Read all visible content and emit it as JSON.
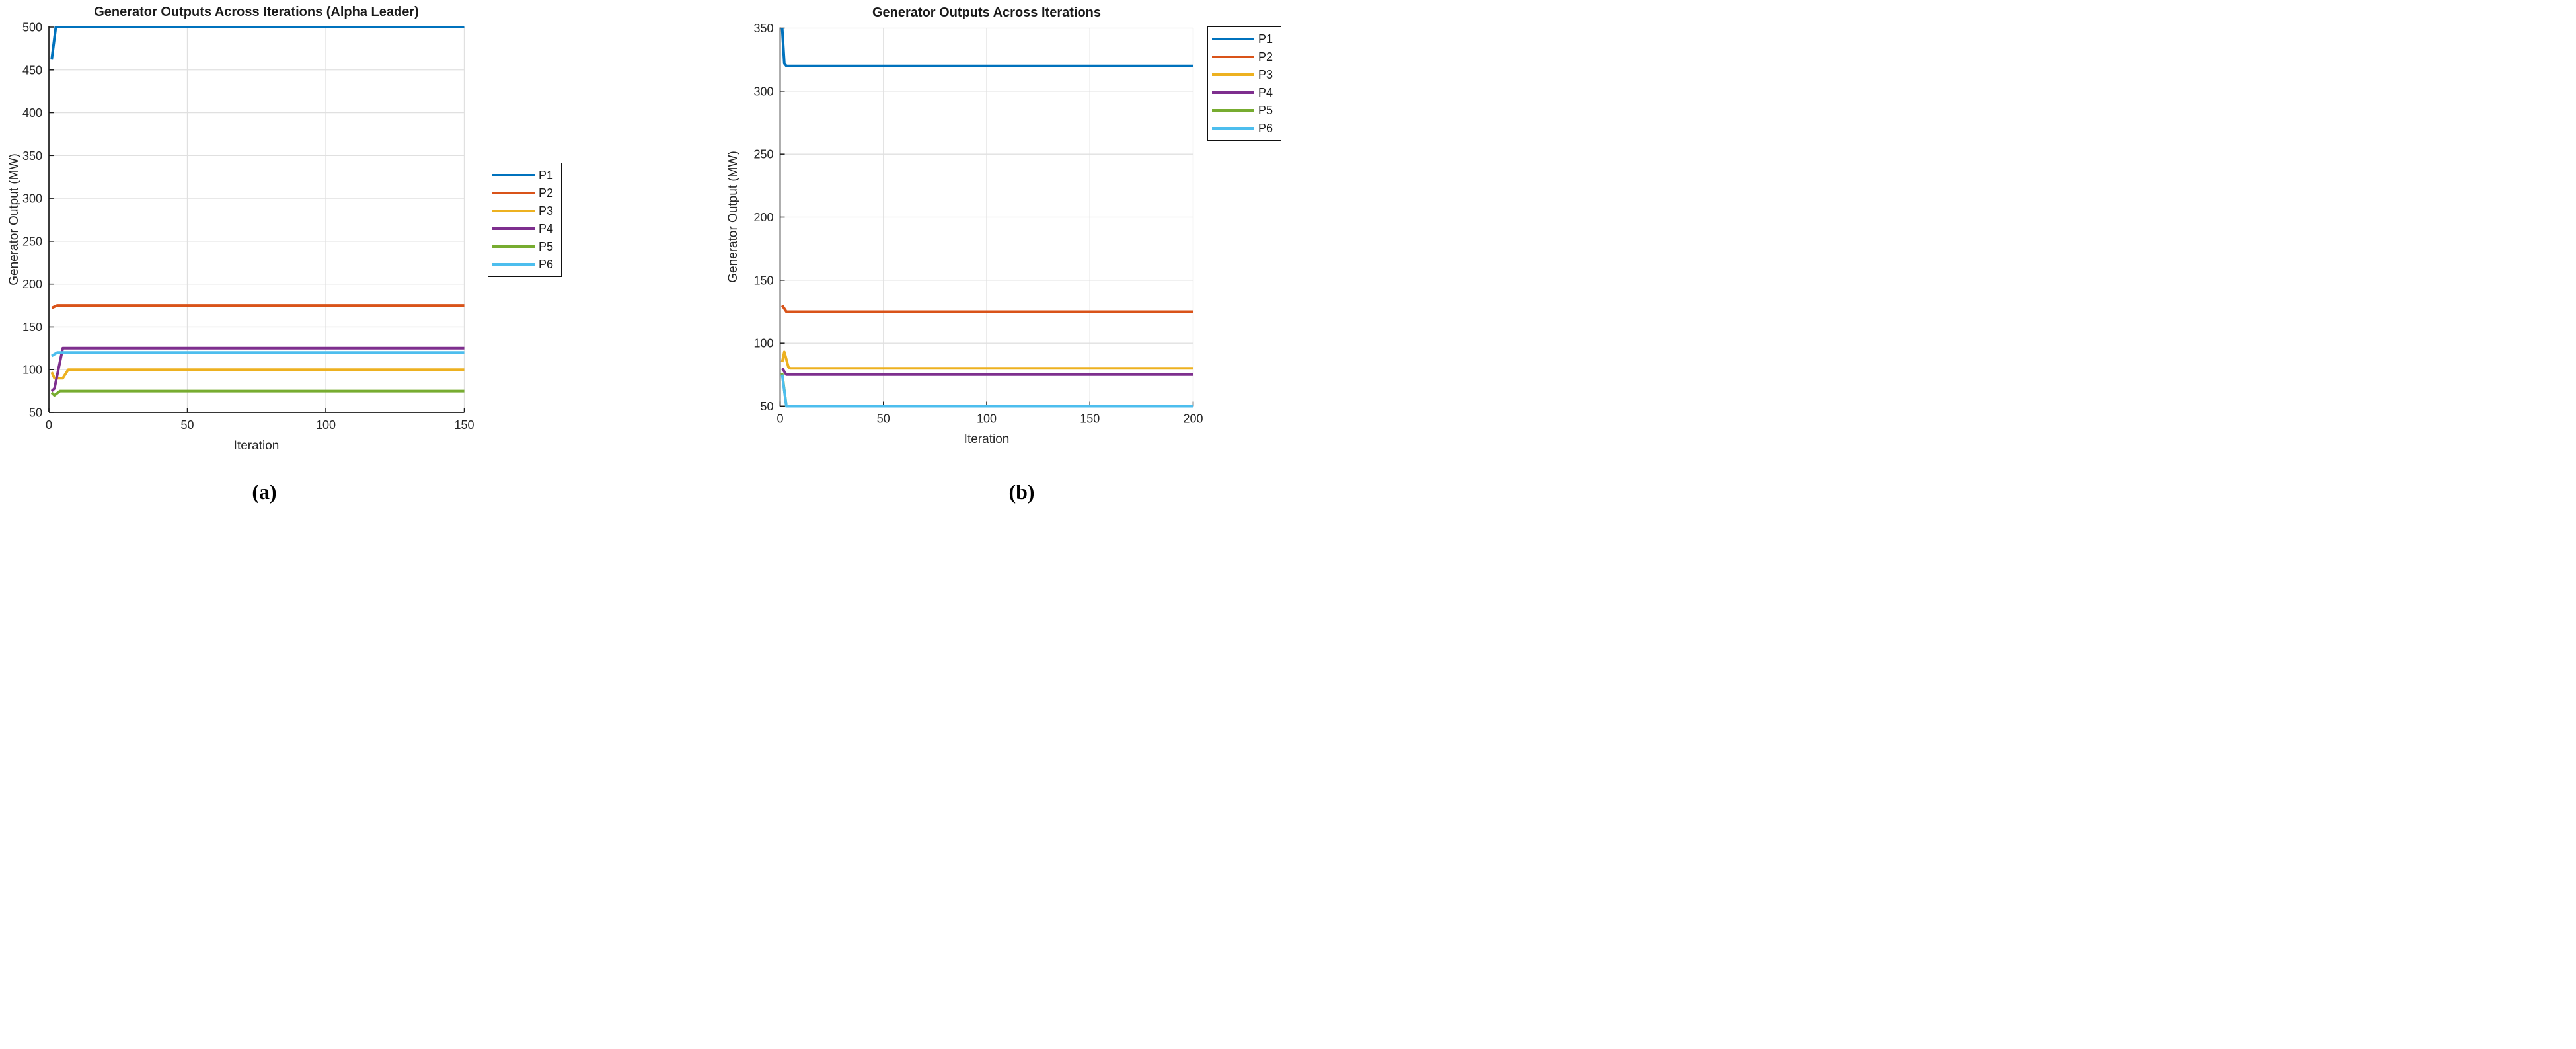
{
  "style": {
    "background": "#FFFFFF",
    "axis_color": "#1A1A1A",
    "grid_color": "#E0E0E0",
    "text_color": "#262626",
    "series_colors": {
      "P1": "#0072BD",
      "P2": "#D95319",
      "P3": "#EDB120",
      "P4": "#7E2F8E",
      "P5": "#77AC30",
      "P6": "#4DBEEE"
    }
  },
  "captions": {
    "a": "(a)",
    "b": "(b)"
  },
  "chart_data": [
    {
      "type": "line",
      "title": "Generator Outputs Across Iterations (Alpha Leader)",
      "xlabel": "Iteration",
      "ylabel": "Generator Output (MW)",
      "xlim": [
        0,
        150
      ],
      "ylim": [
        50,
        500
      ],
      "xticks": [
        0,
        50,
        100,
        150
      ],
      "yticks": [
        50,
        100,
        150,
        200,
        250,
        300,
        350,
        400,
        450,
        500
      ],
      "grid": true,
      "legend": {
        "position": "outside-right-middle",
        "entries": [
          "P1",
          "P2",
          "P3",
          "P4",
          "P5",
          "P6"
        ]
      },
      "series": [
        {
          "name": "P1",
          "color": "#0072BD",
          "final_value": 500,
          "points": [
            [
              1,
              462
            ],
            [
              2.5,
              500
            ],
            [
              150,
              500
            ]
          ]
        },
        {
          "name": "P2",
          "color": "#D95319",
          "final_value": 175,
          "points": [
            [
              1,
              172
            ],
            [
              3,
              175
            ],
            [
              150,
              175
            ]
          ]
        },
        {
          "name": "P3",
          "color": "#EDB120",
          "final_value": 100,
          "points": [
            [
              1,
              97
            ],
            [
              2,
              90
            ],
            [
              5,
              90
            ],
            [
              7,
              100
            ],
            [
              150,
              100
            ]
          ]
        },
        {
          "name": "P4",
          "color": "#7E2F8E",
          "final_value": 125,
          "points": [
            [
              1,
              75
            ],
            [
              2,
              78
            ],
            [
              5,
              125
            ],
            [
              150,
              125
            ]
          ]
        },
        {
          "name": "P5",
          "color": "#77AC30",
          "final_value": 75,
          "points": [
            [
              1,
              73
            ],
            [
              2,
              70
            ],
            [
              4,
              75
            ],
            [
              150,
              75
            ]
          ]
        },
        {
          "name": "P6",
          "color": "#4DBEEE",
          "final_value": 120,
          "points": [
            [
              1,
              116
            ],
            [
              3,
              120
            ],
            [
              150,
              120
            ]
          ]
        }
      ]
    },
    {
      "type": "line",
      "title": "Generator Outputs Across Iterations",
      "xlabel": "Iteration",
      "ylabel": "Generator Output (MW)",
      "xlim": [
        0,
        200
      ],
      "ylim": [
        50,
        350
      ],
      "xticks": [
        0,
        50,
        100,
        150,
        200
      ],
      "yticks": [
        50,
        100,
        150,
        200,
        250,
        300,
        350
      ],
      "grid": true,
      "legend": {
        "position": "inside-top-right",
        "entries": [
          "P1",
          "P2",
          "P3",
          "P4",
          "P5",
          "P6"
        ]
      },
      "series": [
        {
          "name": "P1",
          "color": "#0072BD",
          "final_value": 320,
          "points": [
            [
              1,
              350
            ],
            [
              2,
              322
            ],
            [
              3,
              320
            ],
            [
              200,
              320
            ]
          ]
        },
        {
          "name": "P2",
          "color": "#D95319",
          "final_value": 125,
          "points": [
            [
              1,
              130
            ],
            [
              3,
              125
            ],
            [
              200,
              125
            ]
          ]
        },
        {
          "name": "P3",
          "color": "#EDB120",
          "final_value": 80,
          "points": [
            [
              1,
              85
            ],
            [
              2,
              93
            ],
            [
              4,
              81
            ],
            [
              5,
              80
            ],
            [
              200,
              80
            ]
          ]
        },
        {
          "name": "P4",
          "color": "#7E2F8E",
          "final_value": 75,
          "points": [
            [
              1,
              80
            ],
            [
              3,
              75
            ],
            [
              200,
              75
            ]
          ]
        },
        {
          "name": "P5",
          "color": "#77AC30",
          "final_value": 50,
          "points": [
            [
              1,
              76
            ],
            [
              3,
              50
            ],
            [
              200,
              50
            ]
          ]
        },
        {
          "name": "P6",
          "color": "#4DBEEE",
          "final_value": 50,
          "points": [
            [
              1,
              75
            ],
            [
              3,
              50
            ],
            [
              200,
              50
            ]
          ]
        }
      ]
    }
  ]
}
